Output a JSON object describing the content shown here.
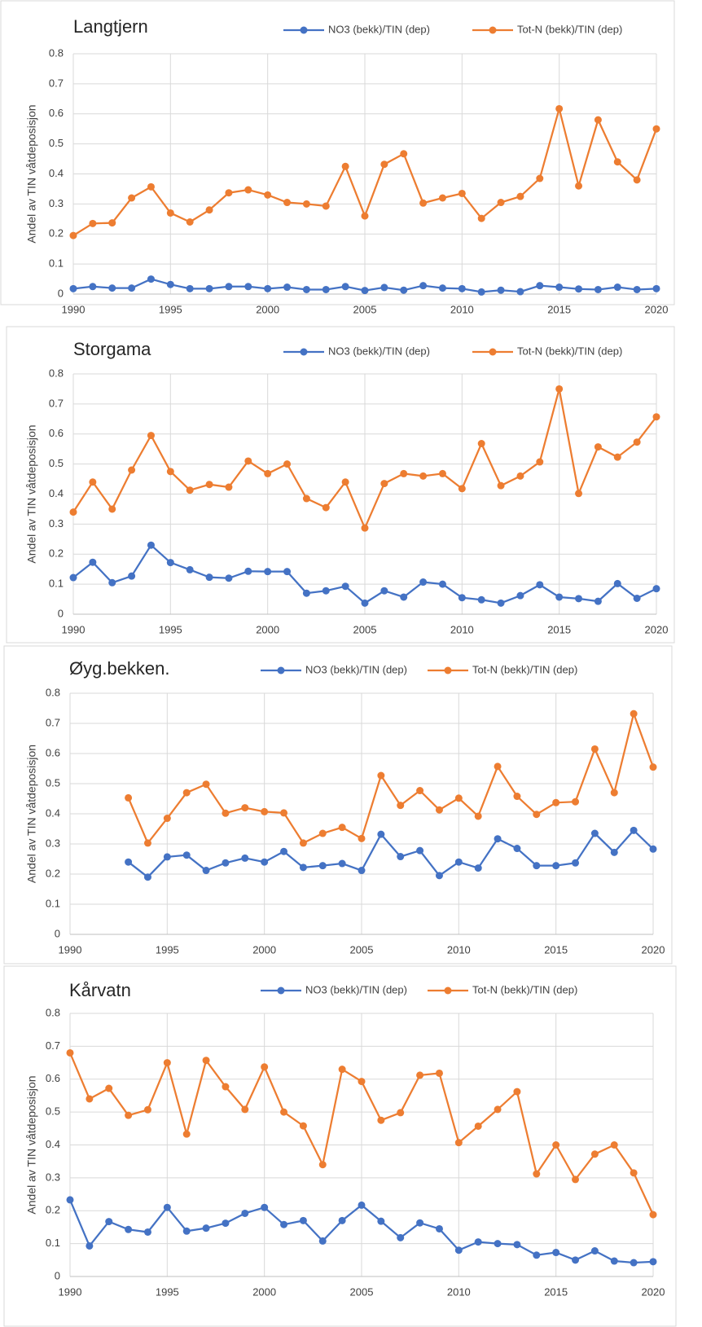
{
  "chart_data": [
    {
      "type": "line",
      "title": "Langtjern",
      "y_label": "Andel av TIN våtdeposisjon",
      "grid": true,
      "x": [
        1990,
        1991,
        1992,
        1993,
        1994,
        1995,
        1996,
        1997,
        1998,
        1999,
        2000,
        2001,
        2002,
        2003,
        2004,
        2005,
        2006,
        2007,
        2008,
        2009,
        2010,
        2011,
        2012,
        2013,
        2014,
        2015,
        2016,
        2017,
        2018,
        2019,
        2020
      ],
      "xlim": [
        1990,
        2020
      ],
      "xticks": [
        1990,
        1995,
        2000,
        2005,
        2010,
        2015,
        2020
      ],
      "ylim": [
        0,
        0.8
      ],
      "yticks": [
        0,
        0.1,
        0.2,
        0.3,
        0.4,
        0.5,
        0.6,
        0.7,
        0.8
      ],
      "series": [
        {
          "name": "NO3 (bekk)/TIN (dep)",
          "color": "#4472c4",
          "values": [
            0.018,
            0.025,
            0.02,
            0.02,
            0.05,
            0.032,
            0.018,
            0.018,
            0.025,
            0.025,
            0.018,
            0.023,
            0.015,
            0.015,
            0.025,
            0.012,
            0.022,
            0.013,
            0.028,
            0.02,
            0.018,
            0.007,
            0.013,
            0.008,
            0.028,
            0.023,
            0.017,
            0.015,
            0.023,
            0.015,
            0.018
          ]
        },
        {
          "name": "Tot-N (bekk)/TIN (dep)",
          "color": "#ed7d31",
          "values": [
            0.195,
            0.235,
            0.237,
            0.32,
            0.357,
            0.27,
            0.24,
            0.28,
            0.337,
            0.347,
            0.33,
            0.305,
            0.3,
            0.293,
            0.425,
            0.26,
            0.432,
            0.467,
            0.303,
            0.32,
            0.335,
            0.252,
            0.305,
            0.325,
            0.385,
            0.617,
            0.36,
            0.58,
            0.44,
            0.38,
            0.55
          ]
        }
      ]
    },
    {
      "type": "line",
      "title": "Storgama",
      "y_label": "Andel av TIN våtdeposisjon",
      "grid": true,
      "x": [
        1990,
        1991,
        1992,
        1993,
        1994,
        1995,
        1996,
        1997,
        1998,
        1999,
        2000,
        2001,
        2002,
        2003,
        2004,
        2005,
        2006,
        2007,
        2008,
        2009,
        2010,
        2011,
        2012,
        2013,
        2014,
        2015,
        2016,
        2017,
        2018,
        2019,
        2020
      ],
      "xlim": [
        1990,
        2020
      ],
      "xticks": [
        1990,
        1995,
        2000,
        2005,
        2010,
        2015,
        2020
      ],
      "ylim": [
        0,
        0.8
      ],
      "yticks": [
        0,
        0.1,
        0.2,
        0.3,
        0.4,
        0.5,
        0.6,
        0.7,
        0.8
      ],
      "series": [
        {
          "name": "NO3 (bekk)/TIN (dep)",
          "color": "#4472c4",
          "values": [
            0.122,
            0.173,
            0.105,
            0.127,
            0.23,
            0.172,
            0.148,
            0.123,
            0.12,
            0.143,
            0.142,
            0.142,
            0.07,
            0.078,
            0.093,
            0.037,
            0.078,
            0.057,
            0.107,
            0.1,
            0.055,
            0.048,
            0.037,
            0.062,
            0.098,
            0.057,
            0.052,
            0.043,
            0.102,
            0.053,
            0.085
          ]
        },
        {
          "name": "Tot-N (bekk)/TIN (dep)",
          "color": "#ed7d31",
          "values": [
            0.34,
            0.44,
            0.35,
            0.48,
            0.595,
            0.475,
            0.413,
            0.432,
            0.423,
            0.51,
            0.468,
            0.5,
            0.385,
            0.355,
            0.44,
            0.287,
            0.435,
            0.468,
            0.46,
            0.468,
            0.418,
            0.568,
            0.428,
            0.46,
            0.507,
            0.75,
            0.402,
            0.557,
            0.523,
            0.573,
            0.657
          ]
        }
      ]
    },
    {
      "type": "line",
      "title": "Øyg.bekken.",
      "y_label": "Andel av TIN våtdeposisjon",
      "grid": true,
      "x": [
        1990,
        1991,
        1992,
        1993,
        1994,
        1995,
        1996,
        1997,
        1998,
        1999,
        2000,
        2001,
        2002,
        2003,
        2004,
        2005,
        2006,
        2007,
        2008,
        2009,
        2010,
        2011,
        2012,
        2013,
        2014,
        2015,
        2016,
        2017,
        2018,
        2019,
        2020
      ],
      "xlim": [
        1990,
        2020
      ],
      "xticks": [
        1990,
        1995,
        2000,
        2005,
        2010,
        2015,
        2020
      ],
      "ylim": [
        0,
        0.8
      ],
      "yticks": [
        0,
        0.1,
        0.2,
        0.3,
        0.4,
        0.5,
        0.6,
        0.7,
        0.8
      ],
      "series": [
        {
          "name": "NO3 (bekk)/TIN (dep)",
          "color": "#4472c4",
          "values": [
            null,
            null,
            null,
            0.24,
            0.19,
            0.257,
            0.263,
            0.212,
            0.237,
            0.253,
            0.24,
            0.275,
            0.222,
            0.228,
            0.235,
            0.212,
            0.332,
            0.258,
            0.278,
            0.195,
            0.24,
            0.22,
            0.317,
            0.285,
            0.228,
            0.228,
            0.237,
            0.335,
            0.272,
            0.345,
            0.283
          ]
        },
        {
          "name": "Tot-N (bekk)/TIN (dep)",
          "color": "#ed7d31",
          "values": [
            null,
            null,
            null,
            0.453,
            0.303,
            0.385,
            0.47,
            0.498,
            0.402,
            0.42,
            0.407,
            0.403,
            0.303,
            0.335,
            0.355,
            0.318,
            0.527,
            0.428,
            0.477,
            0.413,
            0.452,
            0.392,
            0.557,
            0.458,
            0.398,
            0.437,
            0.44,
            0.615,
            0.47,
            0.732,
            0.555
          ]
        }
      ]
    },
    {
      "type": "line",
      "title": "Kårvatn",
      "y_label": "Andel av TIN våtdeposisjon",
      "grid": true,
      "x": [
        1990,
        1991,
        1992,
        1993,
        1994,
        1995,
        1996,
        1997,
        1998,
        1999,
        2000,
        2001,
        2002,
        2003,
        2004,
        2005,
        2006,
        2007,
        2008,
        2009,
        2010,
        2011,
        2012,
        2013,
        2014,
        2015,
        2016,
        2017,
        2018,
        2019,
        2020
      ],
      "xlim": [
        1990,
        2020
      ],
      "xticks": [
        1990,
        1995,
        2000,
        2005,
        2010,
        2015,
        2020
      ],
      "ylim": [
        0,
        0.8
      ],
      "yticks": [
        0,
        0.1,
        0.2,
        0.3,
        0.4,
        0.5,
        0.6,
        0.7,
        0.8
      ],
      "series": [
        {
          "name": "NO3 (bekk)/TIN (dep)",
          "color": "#4472c4",
          "values": [
            0.233,
            0.093,
            0.167,
            0.143,
            0.135,
            0.21,
            0.138,
            0.147,
            0.162,
            0.192,
            0.21,
            0.158,
            0.17,
            0.108,
            0.17,
            0.217,
            0.168,
            0.118,
            0.163,
            0.145,
            0.08,
            0.105,
            0.1,
            0.097,
            0.065,
            0.073,
            0.05,
            0.078,
            0.047,
            0.042,
            0.045
          ]
        },
        {
          "name": "Tot-N (bekk)/TIN (dep)",
          "color": "#ed7d31",
          "values": [
            0.68,
            0.54,
            0.572,
            0.49,
            0.507,
            0.65,
            0.433,
            0.657,
            0.577,
            0.508,
            0.637,
            0.5,
            0.458,
            0.34,
            0.63,
            0.593,
            0.475,
            0.498,
            0.612,
            0.618,
            0.407,
            0.457,
            0.508,
            0.562,
            0.312,
            0.4,
            0.295,
            0.372,
            0.4,
            0.315,
            0.188
          ]
        }
      ]
    }
  ]
}
